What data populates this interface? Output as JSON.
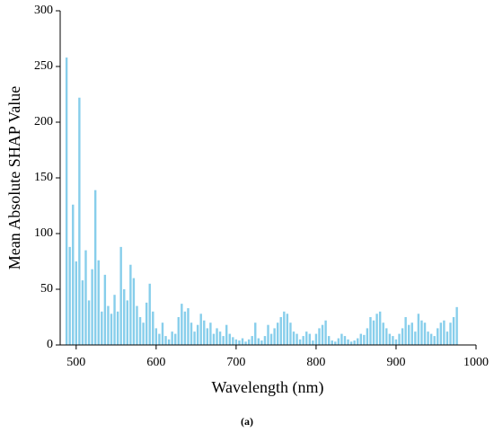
{
  "chart_data": {
    "type": "bar",
    "x_label": "Wavelength (nm)",
    "y_label": "Mean Absolute SHAP Value",
    "caption": "(a)",
    "x": [
      488,
      492,
      496,
      500,
      504,
      508,
      512,
      516,
      520,
      524,
      528,
      532,
      536,
      540,
      544,
      548,
      552,
      556,
      560,
      564,
      568,
      572,
      576,
      580,
      584,
      588,
      592,
      596,
      600,
      604,
      608,
      612,
      616,
      620,
      624,
      628,
      632,
      636,
      640,
      644,
      648,
      652,
      656,
      660,
      664,
      668,
      672,
      676,
      680,
      684,
      688,
      692,
      696,
      700,
      704,
      708,
      712,
      716,
      720,
      724,
      728,
      732,
      736,
      740,
      744,
      748,
      752,
      756,
      760,
      764,
      768,
      772,
      776,
      780,
      784,
      788,
      792,
      796,
      800,
      804,
      808,
      812,
      816,
      820,
      824,
      828,
      832,
      836,
      840,
      844,
      848,
      852,
      856,
      860,
      864,
      868,
      872,
      876,
      880,
      884,
      888,
      892,
      896,
      900,
      904,
      908,
      912,
      916,
      920,
      924,
      928,
      932,
      936,
      940,
      944,
      948,
      952,
      956,
      960,
      964,
      968,
      972,
      976
    ],
    "values": [
      258,
      88,
      126,
      75,
      222,
      58,
      85,
      40,
      68,
      139,
      76,
      30,
      63,
      35,
      28,
      45,
      30,
      88,
      50,
      40,
      72,
      60,
      35,
      25,
      20,
      38,
      55,
      30,
      15,
      10,
      20,
      8,
      5,
      12,
      10,
      25,
      37,
      30,
      33,
      20,
      12,
      18,
      28,
      22,
      15,
      20,
      10,
      15,
      12,
      8,
      18,
      10,
      7,
      5,
      4,
      6,
      3,
      5,
      8,
      20,
      6,
      4,
      8,
      18,
      10,
      15,
      20,
      25,
      30,
      28,
      20,
      12,
      10,
      5,
      8,
      12,
      10,
      4,
      10,
      15,
      18,
      22,
      8,
      4,
      3,
      6,
      10,
      8,
      5,
      3,
      4,
      6,
      10,
      9,
      15,
      25,
      22,
      28,
      30,
      20,
      15,
      10,
      8,
      5,
      10,
      15,
      25,
      18,
      20,
      12,
      28,
      22,
      20,
      12,
      10,
      8,
      15,
      20,
      22,
      12,
      20,
      25,
      34
    ],
    "color": "#87ceeb",
    "xlim": [
      480,
      1000
    ],
    "xticks": [
      500,
      600,
      700,
      800,
      900,
      1000
    ],
    "ylim": [
      0,
      300
    ],
    "yticks": [
      0,
      50,
      100,
      150,
      200,
      250,
      300
    ]
  }
}
